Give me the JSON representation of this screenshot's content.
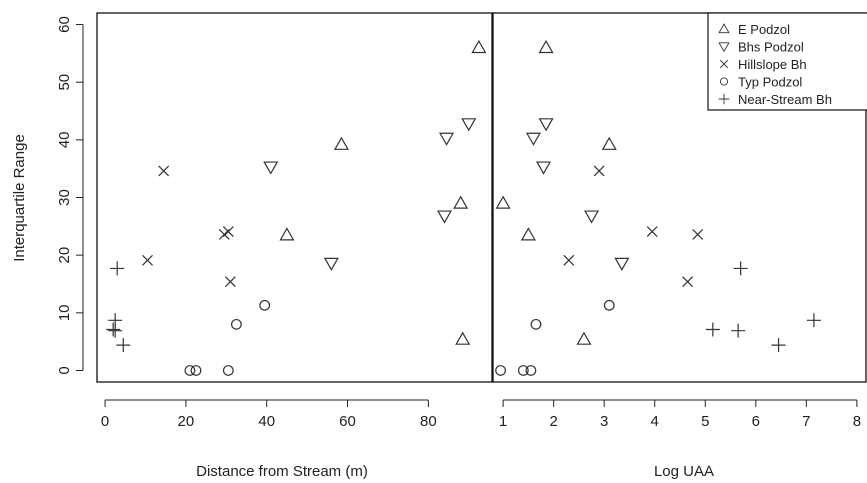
{
  "chart_data": [
    {
      "type": "scatter",
      "xlabel": "Distance from Stream (m)",
      "ylabel": "Interquartile Range",
      "xlim": [
        -2,
        96
      ],
      "ylim": [
        -2,
        62
      ],
      "xticks": [
        0,
        20,
        40,
        60,
        80
      ],
      "yticks": [
        0,
        10,
        20,
        30,
        40,
        50,
        60
      ],
      "series": [
        {
          "name": "E Podzol",
          "marker": "triangle-up",
          "points": [
            [
              92.5,
              56
            ],
            [
              58.5,
              39.2
            ],
            [
              88,
              29
            ],
            [
              45,
              23.5
            ],
            [
              88.5,
              5.4
            ]
          ]
        },
        {
          "name": "Bhs Podzol",
          "marker": "triangle-down",
          "points": [
            [
              90,
              42.8
            ],
            [
              84.5,
              40.3
            ],
            [
              41,
              35.3
            ],
            [
              84,
              26.8
            ],
            [
              56,
              18.6
            ]
          ]
        },
        {
          "name": "Hillslope Bh",
          "marker": "cross",
          "points": [
            [
              14.5,
              34.6
            ],
            [
              30.5,
              24.1
            ],
            [
              29.5,
              23.6
            ],
            [
              10.5,
              19.1
            ],
            [
              31,
              15.4
            ]
          ]
        },
        {
          "name": "Typ Podzol",
          "marker": "circle",
          "points": [
            [
              39.5,
              11.3
            ],
            [
              32.5,
              8
            ],
            [
              21,
              0
            ],
            [
              22.5,
              0
            ],
            [
              30.5,
              0
            ]
          ]
        },
        {
          "name": "Near-Stream Bh",
          "marker": "plus",
          "points": [
            [
              3,
              17.7
            ],
            [
              2.5,
              8.7
            ],
            [
              2,
              7.1
            ],
            [
              2.5,
              6.9
            ],
            [
              4.5,
              4.4
            ]
          ]
        }
      ]
    },
    {
      "type": "scatter",
      "xlabel": "Log UAA",
      "ylabel": "",
      "xlim": [
        0.8,
        8.2
      ],
      "ylim": [
        -2,
        62
      ],
      "xticks": [
        1,
        2,
        3,
        4,
        5,
        6,
        7,
        8
      ],
      "series": [
        {
          "name": "E Podzol",
          "marker": "triangle-up",
          "points": [
            [
              1.85,
              56
            ],
            [
              3.1,
              39.2
            ],
            [
              1,
              29
            ],
            [
              1.5,
              23.5
            ],
            [
              2.6,
              5.4
            ]
          ]
        },
        {
          "name": "Bhs Podzol",
          "marker": "triangle-down",
          "points": [
            [
              1.85,
              42.8
            ],
            [
              1.6,
              40.3
            ],
            [
              1.8,
              35.3
            ],
            [
              2.75,
              26.8
            ],
            [
              3.35,
              18.6
            ]
          ]
        },
        {
          "name": "Hillslope Bh",
          "marker": "cross",
          "points": [
            [
              2.9,
              34.6
            ],
            [
              3.95,
              24.1
            ],
            [
              4.85,
              23.6
            ],
            [
              2.3,
              19.1
            ],
            [
              4.65,
              15.4
            ]
          ]
        },
        {
          "name": "Typ Podzol",
          "marker": "circle",
          "points": [
            [
              3.1,
              11.3
            ],
            [
              1.65,
              8
            ],
            [
              0.95,
              0
            ],
            [
              1.4,
              0
            ],
            [
              1.55,
              0
            ]
          ]
        },
        {
          "name": "Near-Stream Bh",
          "marker": "plus",
          "points": [
            [
              5.7,
              17.7
            ],
            [
              7.15,
              8.7
            ],
            [
              5.15,
              7.1
            ],
            [
              5.65,
              6.9
            ],
            [
              6.45,
              4.4
            ]
          ]
        }
      ],
      "legend": {
        "placement": "top-right",
        "entries": [
          {
            "label": "E Podzol",
            "marker": "triangle-up"
          },
          {
            "label": "Bhs Podzol",
            "marker": "triangle-down"
          },
          {
            "label": "Hillslope Bh",
            "marker": "cross"
          },
          {
            "label": "Typ Podzol",
            "marker": "circle"
          },
          {
            "label": "Near-Stream Bh",
            "marker": "plus"
          }
        ]
      }
    }
  ]
}
